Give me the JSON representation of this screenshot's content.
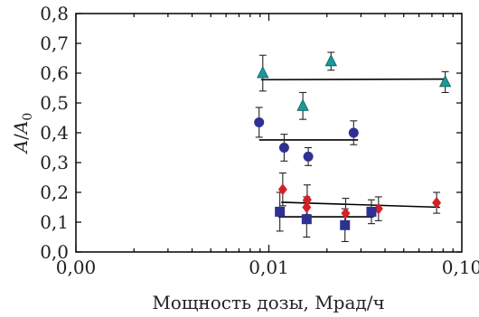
{
  "chart_data": {
    "type": "scatter",
    "title": "",
    "xlabel": "Мощность дозы, Мрад/ч",
    "ylabel_num": "A",
    "ylabel_den": "A",
    "ylabel_den_sub": "0",
    "x_scale": "log",
    "xlim": [
      0.001,
      0.1
    ],
    "ylim": [
      0.0,
      0.8
    ],
    "x_tick_labels": [
      {
        "value": 0.001,
        "label": "0,00"
      },
      {
        "value": 0.01,
        "label": "0,01"
      },
      {
        "value": 0.1,
        "label": "0,10"
      }
    ],
    "y_tick_labels": [
      {
        "value": 0.0,
        "label": "0,0"
      },
      {
        "value": 0.1,
        "label": "0,1"
      },
      {
        "value": 0.2,
        "label": "0,2"
      },
      {
        "value": 0.3,
        "label": "0,3"
      },
      {
        "value": 0.4,
        "label": "0,4"
      },
      {
        "value": 0.5,
        "label": "0,5"
      },
      {
        "value": 0.6,
        "label": "0,6"
      },
      {
        "value": 0.7,
        "label": "0,7"
      },
      {
        "value": 0.8,
        "label": "0,8"
      }
    ],
    "grid": false,
    "series": [
      {
        "marker": "triangle",
        "color": "#1a9a9a",
        "points": [
          {
            "x": 0.0093,
            "y": 0.6,
            "err": 0.06
          },
          {
            "x": 0.015,
            "y": 0.49,
            "err": 0.045
          },
          {
            "x": 0.021,
            "y": 0.64,
            "err": 0.03
          },
          {
            "x": 0.082,
            "y": 0.57,
            "err": 0.035
          }
        ],
        "fit": {
          "x": [
            0.0091,
            0.083
          ],
          "y": [
            0.578,
            0.58
          ]
        }
      },
      {
        "marker": "circle",
        "color": "#2e3192",
        "points": [
          {
            "x": 0.0089,
            "y": 0.435,
            "err": 0.05
          },
          {
            "x": 0.012,
            "y": 0.35,
            "err": 0.045
          },
          {
            "x": 0.016,
            "y": 0.32,
            "err": 0.03
          },
          {
            "x": 0.0275,
            "y": 0.4,
            "err": 0.04
          }
        ],
        "fit": {
          "x": [
            0.0089,
            0.029
          ],
          "y": [
            0.376,
            0.376
          ]
        }
      },
      {
        "marker": "diamond",
        "color": "#d42027",
        "points": [
          {
            "x": 0.0118,
            "y": 0.21,
            "err": 0.055
          },
          {
            "x": 0.0158,
            "y": 0.175,
            "err": 0.05
          },
          {
            "x": 0.0157,
            "y": 0.15,
            "err": 0.035
          },
          {
            "x": 0.025,
            "y": 0.13,
            "err": 0.05
          },
          {
            "x": 0.037,
            "y": 0.145,
            "err": 0.04
          },
          {
            "x": 0.074,
            "y": 0.165,
            "err": 0.035
          }
        ],
        "fit": {
          "x": [
            0.0116,
            0.077
          ],
          "y": [
            0.167,
            0.15
          ]
        }
      },
      {
        "marker": "square",
        "color": "#2e3192",
        "points": [
          {
            "x": 0.0114,
            "y": 0.135,
            "err": 0.065
          },
          {
            "x": 0.0157,
            "y": 0.11,
            "err": 0.06
          },
          {
            "x": 0.0248,
            "y": 0.09,
            "err": 0.055
          },
          {
            "x": 0.034,
            "y": 0.135,
            "err": 0.04
          }
        ],
        "fit": {
          "x": [
            0.0112,
            0.035
          ],
          "y": [
            0.118,
            0.118
          ]
        }
      }
    ]
  }
}
